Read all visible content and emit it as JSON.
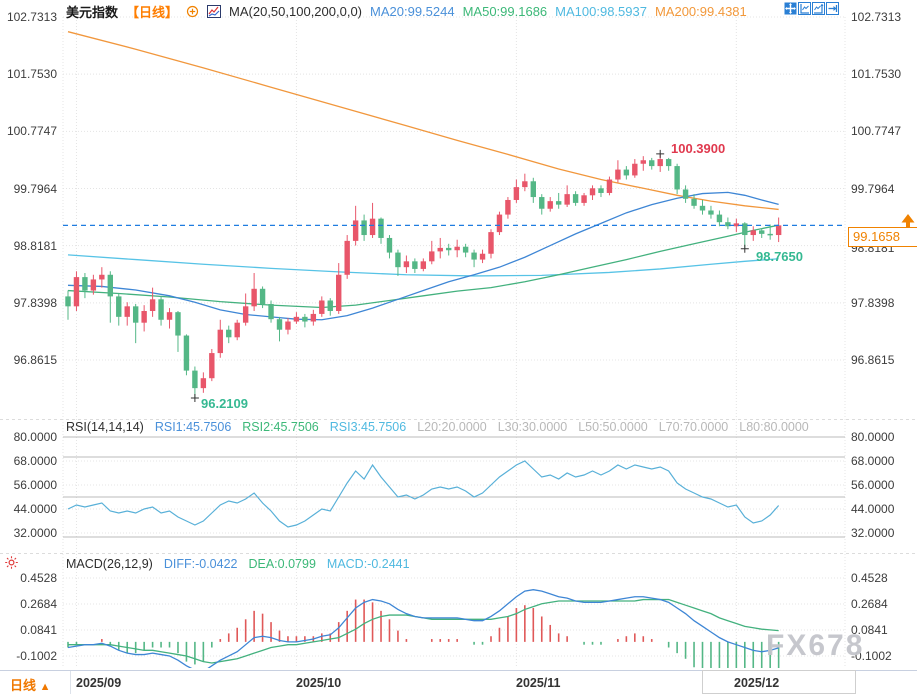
{
  "header": {
    "symbol": "美元指数",
    "period_tag": "【日线】",
    "ma_name": "MA(20,50,100,200,0,0)",
    "ma20": "MA20:99.5244",
    "ma50": "MA50:99.1686",
    "ma100": "MA100:98.5937",
    "ma200": "MA200:99.4381"
  },
  "rsi_header": {
    "name": "RSI(14,14,14)",
    "rsi1": "RSI1:45.7506",
    "rsi2": "RSI2:45.7506",
    "rsi3": "RSI3:45.7506",
    "l20": "L20:20.0000",
    "l30": "L30:30.0000",
    "l50": "L50:50.0000",
    "l70": "L70:70.0000",
    "l80": "L80:80.0000"
  },
  "macd_header": {
    "name": "MACD(26,12,9)",
    "diff": "DIFF:-0.0422",
    "dea": "DEA:0.0799",
    "macd": "MACD:-0.2441"
  },
  "footer": {
    "period_label": "日线",
    "period_arrow": "▲"
  },
  "watermark": "FX678",
  "colors": {
    "candle_up": "#e8566a",
    "candle_down": "#54b786",
    "ma20": "#3e86d5",
    "ma50": "#43b17e",
    "ma100": "#57c3e6",
    "ma200": "#f1973d",
    "rsi_line": "#58b0d8",
    "diff_line": "#3e86d5",
    "dea_line": "#43b17e",
    "hist_pos": "#e05858",
    "hist_neg": "#54b786",
    "price_line": "#1f7ce0",
    "price_box": "#f08200",
    "high_marker": "#e0394e",
    "low_marker": "#35b992"
  },
  "chart_data": {
    "type": "candlestick",
    "title": "美元指数 日线 (US Dollar Index Daily)",
    "price_axis_labels": [
      "102.7313",
      "101.7530",
      "100.7747",
      "99.7964",
      "98.8181",
      "97.8398",
      "96.8615"
    ],
    "x_axis": {
      "labels": [
        "2025/09",
        "2025/10",
        "2025/11",
        "2025/12"
      ],
      "label_idx": [
        1,
        27,
        53,
        79
      ]
    },
    "candles": [
      [
        97.95,
        98.05,
        97.55,
        97.78
      ],
      [
        97.78,
        98.38,
        97.7,
        98.28
      ],
      [
        98.28,
        98.35,
        97.92,
        98.05
      ],
      [
        98.05,
        98.32,
        97.98,
        98.24
      ],
      [
        98.24,
        98.45,
        98.1,
        98.32
      ],
      [
        98.32,
        98.38,
        97.5,
        97.95
      ],
      [
        97.95,
        98.0,
        97.45,
        97.6
      ],
      [
        97.6,
        97.85,
        97.45,
        97.78
      ],
      [
        97.78,
        97.82,
        97.15,
        97.5
      ],
      [
        97.5,
        97.8,
        97.35,
        97.7
      ],
      [
        97.7,
        98.1,
        97.6,
        97.9
      ],
      [
        97.9,
        97.95,
        97.45,
        97.55
      ],
      [
        97.55,
        97.75,
        97.4,
        97.68
      ],
      [
        97.68,
        97.7,
        97.0,
        97.28
      ],
      [
        97.28,
        97.3,
        96.6,
        96.68
      ],
      [
        96.68,
        96.75,
        96.2109,
        96.38
      ],
      [
        96.38,
        96.65,
        96.3,
        96.55
      ],
      [
        96.55,
        97.05,
        96.5,
        96.98
      ],
      [
        96.98,
        97.55,
        96.9,
        97.38
      ],
      [
        97.38,
        97.45,
        97.15,
        97.25
      ],
      [
        97.25,
        97.55,
        97.2,
        97.5
      ],
      [
        97.5,
        98.0,
        97.45,
        97.78
      ],
      [
        97.78,
        98.35,
        97.7,
        98.08
      ],
      [
        98.08,
        98.12,
        97.75,
        97.82
      ],
      [
        97.82,
        97.88,
        97.5,
        97.56
      ],
      [
        97.56,
        97.6,
        97.18,
        97.38
      ],
      [
        97.38,
        97.58,
        97.3,
        97.52
      ],
      [
        97.52,
        97.68,
        97.48,
        97.6
      ],
      [
        97.6,
        97.65,
        97.42,
        97.52
      ],
      [
        97.52,
        97.72,
        97.45,
        97.65
      ],
      [
        97.65,
        97.95,
        97.6,
        97.88
      ],
      [
        97.88,
        97.92,
        97.62,
        97.7
      ],
      [
        97.7,
        98.52,
        97.65,
        98.32
      ],
      [
        98.32,
        99.0,
        98.25,
        98.9
      ],
      [
        98.9,
        99.5,
        98.82,
        99.25
      ],
      [
        99.25,
        99.35,
        98.9,
        99.0
      ],
      [
        99.0,
        99.55,
        98.95,
        99.28
      ],
      [
        99.28,
        99.3,
        98.85,
        98.95
      ],
      [
        98.95,
        99.0,
        98.6,
        98.7
      ],
      [
        98.7,
        98.75,
        98.3,
        98.45
      ],
      [
        98.45,
        98.65,
        98.35,
        98.55
      ],
      [
        98.55,
        98.6,
        98.35,
        98.42
      ],
      [
        98.42,
        98.6,
        98.38,
        98.55
      ],
      [
        98.55,
        98.9,
        98.5,
        98.72
      ],
      [
        98.72,
        98.95,
        98.6,
        98.78
      ],
      [
        98.78,
        98.85,
        98.65,
        98.74
      ],
      [
        98.74,
        98.92,
        98.62,
        98.8
      ],
      [
        98.8,
        98.85,
        98.62,
        98.7
      ],
      [
        98.7,
        98.75,
        98.45,
        98.58
      ],
      [
        98.58,
        98.75,
        98.52,
        98.68
      ],
      [
        98.68,
        99.1,
        98.6,
        99.05
      ],
      [
        99.05,
        99.4,
        99.0,
        99.35
      ],
      [
        99.35,
        99.65,
        99.28,
        99.6
      ],
      [
        99.6,
        99.95,
        99.55,
        99.82
      ],
      [
        99.82,
        100.05,
        99.75,
        99.92
      ],
      [
        99.92,
        99.98,
        99.55,
        99.65
      ],
      [
        99.65,
        99.7,
        99.35,
        99.45
      ],
      [
        99.45,
        99.65,
        99.4,
        99.58
      ],
      [
        99.58,
        99.72,
        99.45,
        99.52
      ],
      [
        99.52,
        99.85,
        99.48,
        99.7
      ],
      [
        99.7,
        99.75,
        99.5,
        99.55
      ],
      [
        99.55,
        99.72,
        99.5,
        99.68
      ],
      [
        99.68,
        99.85,
        99.6,
        99.8
      ],
      [
        99.8,
        99.85,
        99.65,
        99.72
      ],
      [
        99.72,
        100.0,
        99.68,
        99.95
      ],
      [
        99.95,
        100.28,
        99.9,
        100.12
      ],
      [
        100.12,
        100.18,
        99.95,
        100.02
      ],
      [
        100.02,
        100.3,
        99.98,
        100.22
      ],
      [
        100.22,
        100.35,
        100.1,
        100.28
      ],
      [
        100.28,
        100.32,
        100.12,
        100.18
      ],
      [
        100.18,
        100.39,
        100.08,
        100.3
      ],
      [
        100.3,
        100.32,
        100.1,
        100.18
      ],
      [
        100.18,
        100.22,
        99.7,
        99.78
      ],
      [
        99.78,
        99.85,
        99.55,
        99.62
      ],
      [
        99.62,
        99.7,
        99.45,
        99.5
      ],
      [
        99.5,
        99.6,
        99.35,
        99.42
      ],
      [
        99.42,
        99.5,
        99.28,
        99.35
      ],
      [
        99.35,
        99.42,
        99.15,
        99.22
      ],
      [
        99.22,
        99.3,
        99.1,
        99.15
      ],
      [
        99.15,
        99.28,
        99.05,
        99.2
      ],
      [
        99.2,
        99.22,
        98.765,
        99.0
      ],
      [
        99.0,
        99.15,
        98.9,
        99.08
      ],
      [
        99.08,
        99.12,
        98.95,
        99.02
      ],
      [
        99.02,
        99.18,
        98.92,
        99.0
      ],
      [
        99.0,
        99.3,
        98.88,
        99.1658
      ]
    ],
    "ma20_points": [
      [
        0,
        98.14
      ],
      [
        4,
        98.12
      ],
      [
        8,
        98.06
      ],
      [
        12,
        97.96
      ],
      [
        15,
        97.85
      ],
      [
        18,
        97.72
      ],
      [
        21,
        97.64
      ],
      [
        24,
        97.6
      ],
      [
        27,
        97.56
      ],
      [
        30,
        97.55
      ],
      [
        33,
        97.62
      ],
      [
        36,
        97.75
      ],
      [
        39,
        97.9
      ],
      [
        42,
        98.05
      ],
      [
        45,
        98.2
      ],
      [
        48,
        98.32
      ],
      [
        51,
        98.45
      ],
      [
        54,
        98.62
      ],
      [
        57,
        98.82
      ],
      [
        60,
        99.02
      ],
      [
        63,
        99.2
      ],
      [
        66,
        99.38
      ],
      [
        69,
        99.52
      ],
      [
        72,
        99.63
      ],
      [
        75,
        99.71
      ],
      [
        78,
        99.73
      ],
      [
        80,
        99.68
      ],
      [
        82,
        99.6
      ],
      [
        84,
        99.5244
      ]
    ],
    "ma50_points": [
      [
        0,
        98.05
      ],
      [
        6,
        98.0
      ],
      [
        12,
        97.94
      ],
      [
        18,
        97.86
      ],
      [
        24,
        97.8
      ],
      [
        30,
        97.76
      ],
      [
        34,
        97.8
      ],
      [
        38,
        97.88
      ],
      [
        42,
        97.96
      ],
      [
        46,
        98.04
      ],
      [
        50,
        98.1
      ],
      [
        54,
        98.2
      ],
      [
        58,
        98.32
      ],
      [
        62,
        98.45
      ],
      [
        66,
        98.58
      ],
      [
        70,
        98.72
      ],
      [
        74,
        98.85
      ],
      [
        78,
        98.98
      ],
      [
        81,
        99.08
      ],
      [
        84,
        99.1686
      ]
    ],
    "ma100_points": [
      [
        0,
        98.66
      ],
      [
        8,
        98.58
      ],
      [
        16,
        98.5
      ],
      [
        24,
        98.43
      ],
      [
        32,
        98.37
      ],
      [
        40,
        98.32
      ],
      [
        48,
        98.3
      ],
      [
        56,
        98.31
      ],
      [
        64,
        98.36
      ],
      [
        70,
        98.42
      ],
      [
        76,
        98.5
      ],
      [
        80,
        98.55
      ],
      [
        84,
        98.5937
      ]
    ],
    "ma200_points": [
      [
        0,
        102.48
      ],
      [
        8,
        102.18
      ],
      [
        16,
        101.86
      ],
      [
        24,
        101.53
      ],
      [
        32,
        101.2
      ],
      [
        40,
        100.87
      ],
      [
        46,
        100.62
      ],
      [
        52,
        100.38
      ],
      [
        58,
        100.13
      ],
      [
        63,
        99.95
      ],
      [
        68,
        99.8
      ],
      [
        72,
        99.68
      ],
      [
        76,
        99.58
      ],
      [
        80,
        99.5
      ],
      [
        84,
        99.4381
      ]
    ],
    "markers": {
      "high": {
        "idx": 70,
        "price": 100.39,
        "text": "100.3900"
      },
      "low": {
        "idx": 15,
        "price": 96.2109,
        "text": "96.2109"
      },
      "swing_low": {
        "idx": 80,
        "price": 98.765,
        "text": "98.7650"
      },
      "last_price": {
        "value": 99.1658,
        "text": "99.1658"
      }
    },
    "rsi": {
      "axis_labels": [
        "80.0000",
        "68.0000",
        "56.0000",
        "44.0000",
        "32.0000"
      ],
      "levels": [
        80,
        70,
        50,
        30,
        20
      ],
      "values": [
        44,
        46,
        45,
        46,
        47,
        43,
        42,
        43,
        42,
        44,
        45,
        42,
        43,
        40,
        38,
        36,
        38,
        42,
        46,
        48,
        47,
        49,
        52,
        47,
        43,
        38,
        35,
        36,
        38,
        41,
        44,
        43,
        50,
        57,
        63,
        59,
        66,
        60,
        55,
        50,
        51,
        49,
        51,
        54,
        55,
        54,
        55,
        53,
        50,
        52,
        56,
        60,
        63,
        66,
        68,
        64,
        60,
        61,
        59,
        62,
        60,
        61,
        63,
        61,
        63,
        66,
        64,
        66,
        65,
        64,
        65,
        63,
        57,
        54,
        52,
        50,
        49,
        47,
        45,
        46,
        40,
        37,
        38,
        41,
        45.7506
      ]
    },
    "macd": {
      "axis_labels": [
        "0.4528",
        "0.2684",
        "0.0841",
        "-0.1002"
      ],
      "diff": [
        -0.04,
        -0.03,
        -0.02,
        -0.02,
        -0.01,
        -0.03,
        -0.06,
        -0.08,
        -0.09,
        -0.09,
        -0.08,
        -0.09,
        -0.1,
        -0.13,
        -0.17,
        -0.2,
        -0.21,
        -0.17,
        -0.13,
        -0.1,
        -0.07,
        -0.02,
        0.03,
        0.04,
        0.03,
        0.01,
        0.0,
        0.0,
        0.01,
        0.02,
        0.04,
        0.05,
        0.1,
        0.17,
        0.24,
        0.28,
        0.3,
        0.29,
        0.27,
        0.23,
        0.2,
        0.18,
        0.17,
        0.17,
        0.17,
        0.17,
        0.17,
        0.16,
        0.15,
        0.15,
        0.18,
        0.22,
        0.27,
        0.32,
        0.36,
        0.37,
        0.36,
        0.34,
        0.32,
        0.31,
        0.29,
        0.28,
        0.28,
        0.28,
        0.29,
        0.3,
        0.31,
        0.32,
        0.32,
        0.31,
        0.3,
        0.28,
        0.24,
        0.2,
        0.15,
        0.11,
        0.07,
        0.03,
        0.0,
        -0.02,
        -0.04,
        -0.06,
        -0.07,
        -0.06,
        -0.0422
      ],
      "dea": [
        -0.02,
        -0.02,
        -0.02,
        -0.02,
        -0.02,
        -0.02,
        -0.03,
        -0.04,
        -0.05,
        -0.06,
        -0.06,
        -0.07,
        -0.08,
        -0.09,
        -0.1,
        -0.12,
        -0.14,
        -0.15,
        -0.14,
        -0.13,
        -0.12,
        -0.1,
        -0.08,
        -0.06,
        -0.04,
        -0.03,
        -0.02,
        -0.02,
        -0.01,
        0.0,
        0.01,
        0.02,
        0.03,
        0.06,
        0.09,
        0.13,
        0.16,
        0.18,
        0.19,
        0.19,
        0.19,
        0.18,
        0.17,
        0.16,
        0.16,
        0.16,
        0.16,
        0.16,
        0.16,
        0.16,
        0.16,
        0.17,
        0.18,
        0.2,
        0.23,
        0.25,
        0.27,
        0.28,
        0.29,
        0.29,
        0.29,
        0.29,
        0.29,
        0.29,
        0.29,
        0.29,
        0.29,
        0.29,
        0.3,
        0.3,
        0.3,
        0.3,
        0.28,
        0.26,
        0.24,
        0.22,
        0.2,
        0.17,
        0.15,
        0.13,
        0.11,
        0.1,
        0.09,
        0.085,
        0.0799
      ]
    }
  }
}
